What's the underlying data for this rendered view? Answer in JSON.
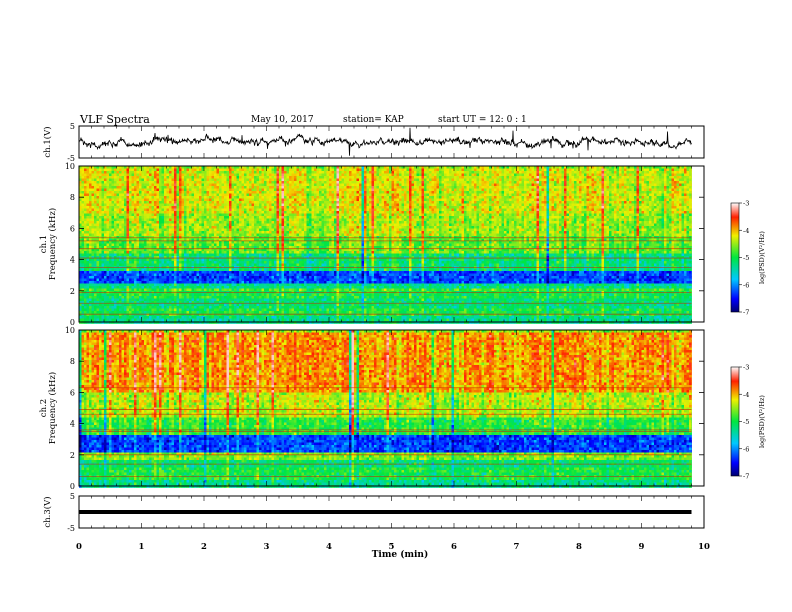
{
  "header": {
    "title": "VLF Spectra",
    "date": "May 10, 2017",
    "station": "station= KAP",
    "start": "start  UT  =   12: 0  : 1"
  },
  "chart_data": [
    {
      "type": "line",
      "panel": "ch1-waveform",
      "ylabel": "ch.1(V)",
      "ylim": [
        -5,
        5
      ],
      "yticks": [
        "-5",
        "5"
      ],
      "xlim": [
        0,
        10
      ],
      "description": "noisy voltage waveform fluctuating roughly between -3 and 3 V over 0 to 9.8 min"
    },
    {
      "type": "heatmap",
      "panel": "ch1-spectrogram",
      "ylabel": "ch.1\nFrequency (kHz)",
      "ylim": [
        0,
        10
      ],
      "yticks": [
        "0",
        "2",
        "4",
        "6",
        "8",
        "10"
      ],
      "xlim": [
        0,
        9.8
      ],
      "colorbar": {
        "label": "log(PSD)(V²/Hz)",
        "min": -7,
        "max": -3,
        "ticks": [
          "-3",
          "-4",
          "-5",
          "-6",
          "-7"
        ]
      },
      "bands": [
        {
          "from": 0.0,
          "to": 0.4,
          "level": -5.3
        },
        {
          "from": 0.4,
          "to": 1.0,
          "level": -5.0
        },
        {
          "from": 1.0,
          "to": 1.6,
          "level": -5.2
        },
        {
          "from": 1.6,
          "to": 2.0,
          "level": -5.0
        },
        {
          "from": 2.0,
          "to": 2.3,
          "level": -4.8
        },
        {
          "from": 2.3,
          "to": 2.6,
          "level": -5.3
        },
        {
          "from": 2.6,
          "to": 3.4,
          "level": -6.3
        },
        {
          "from": 3.4,
          "to": 4.4,
          "level": -5.2
        },
        {
          "from": 4.4,
          "to": 5.6,
          "level": -4.7
        },
        {
          "from": 5.6,
          "to": 7.0,
          "level": -4.5
        },
        {
          "from": 7.0,
          "to": 10.0,
          "level": -4.3
        }
      ],
      "lines_khz": [
        0.5,
        1.2,
        1.9,
        3.5,
        4.1,
        4.7,
        5.2,
        5.4
      ]
    },
    {
      "type": "heatmap",
      "panel": "ch2-spectrogram",
      "ylabel": "ch.2\nFrequency (kHz)",
      "ylim": [
        0,
        10
      ],
      "yticks": [
        "0",
        "2",
        "4",
        "6",
        "8",
        "10"
      ],
      "xlim": [
        0,
        9.8
      ],
      "colorbar": {
        "label": "log(PSD)(V²/Hz)",
        "min": -7,
        "max": -3,
        "ticks": [
          "-3",
          "-4",
          "-5",
          "-6",
          "-7"
        ]
      },
      "bands": [
        {
          "from": 0.0,
          "to": 0.4,
          "level": -5.3
        },
        {
          "from": 0.4,
          "to": 1.2,
          "level": -5.0
        },
        {
          "from": 1.2,
          "to": 1.8,
          "level": -5.2
        },
        {
          "from": 1.8,
          "to": 2.3,
          "level": -4.6
        },
        {
          "from": 2.3,
          "to": 3.4,
          "level": -6.3
        },
        {
          "from": 3.4,
          "to": 4.5,
          "level": -4.9
        },
        {
          "from": 4.5,
          "to": 6.0,
          "level": -4.4
        },
        {
          "from": 6.0,
          "to": 10.0,
          "level": -3.9
        }
      ],
      "lines_khz": [
        0.6,
        1.4,
        2.0,
        3.5,
        3.6,
        4.6,
        4.9,
        6.3
      ]
    },
    {
      "type": "line",
      "panel": "ch3-waveform",
      "ylabel": "ch.3(V)",
      "ylim": [
        -5,
        5
      ],
      "yticks": [
        "-5",
        "5"
      ],
      "xlim": [
        0,
        10
      ],
      "constant_value": 0,
      "xlabel": "Time (min)",
      "xticks": [
        "0",
        "1",
        "2",
        "3",
        "4",
        "5",
        "6",
        "7",
        "8",
        "9",
        "10"
      ]
    }
  ]
}
